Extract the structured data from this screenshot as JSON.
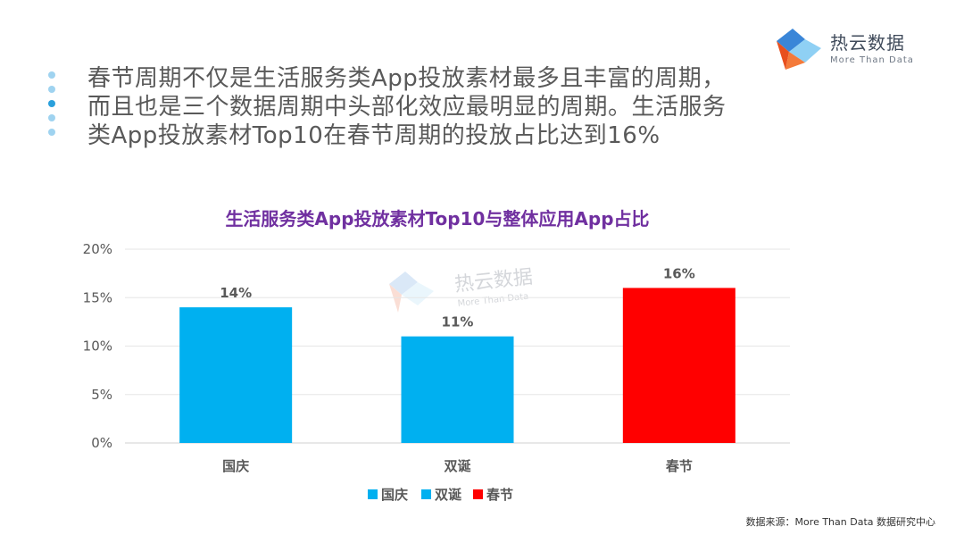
{
  "brand": {
    "name": "热云数据",
    "tagline": "More Than Data"
  },
  "headline": "春节周期不仅是生活服务类App投放素材最多且丰富的周期，而且也是三个数据周期中头部化效应最明显的周期。生活服务类App投放素材Top10在春节周期的投放占比达到16%",
  "colors": {
    "bullet_light": "#9fd3f0",
    "bullet_dark": "#2aa0dc",
    "bar_blue": "#00b0f0",
    "bar_red": "#ff0000",
    "title": "#7030a0"
  },
  "chart_data": {
    "type": "bar",
    "title": "生活服务类App投放素材Top10与整体应用App占比",
    "categories": [
      "国庆",
      "双诞",
      "春节"
    ],
    "values": [
      0.14,
      0.11,
      0.16
    ],
    "data_labels": [
      "14%",
      "11%",
      "16%"
    ],
    "bar_colors": [
      "#00b0f0",
      "#00b0f0",
      "#ff0000"
    ],
    "ylim": [
      0,
      0.2
    ],
    "yticks": [
      0,
      0.05,
      0.1,
      0.15,
      0.2
    ],
    "ytick_labels": [
      "0%",
      "5%",
      "10%",
      "15%",
      "20%"
    ],
    "grid": true,
    "legend": {
      "position": "bottom",
      "entries": [
        {
          "label": "国庆",
          "color": "#00b0f0"
        },
        {
          "label": "双诞",
          "color": "#00b0f0"
        },
        {
          "label": "春节",
          "color": "#ff0000"
        }
      ]
    }
  },
  "source": "数据来源：More Than Data 数据研究中心"
}
